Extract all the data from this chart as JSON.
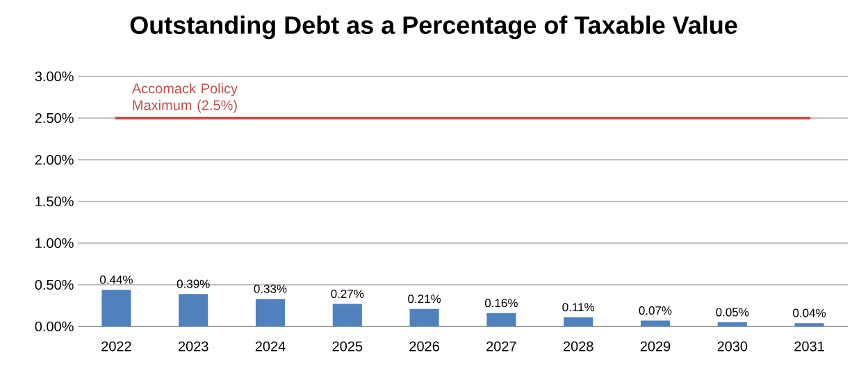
{
  "chart_data": {
    "type": "bar",
    "title": "Outstanding Debt as a Percentage of Taxable Value",
    "categories": [
      "2022",
      "2023",
      "2024",
      "2025",
      "2026",
      "2027",
      "2028",
      "2029",
      "2030",
      "2031"
    ],
    "series": [
      {
        "color": "#4f81bd",
        "values": [
          0.44,
          0.39,
          0.33,
          0.27,
          0.21,
          0.16,
          0.11,
          0.07,
          0.05,
          0.04
        ],
        "value_labels": [
          "0.44%",
          "0.39%",
          "0.33%",
          "0.27%",
          "0.21%",
          "0.16%",
          "0.11%",
          "0.07%",
          "0.05%",
          "0.04%"
        ]
      },
      {
        "type": "line",
        "name": "Accomack Policy Maximum (2.5%)",
        "color": "#c0504d",
        "values": [
          2.5,
          2.5,
          2.5,
          2.5,
          2.5,
          2.5,
          2.5,
          2.5,
          2.5,
          2.5
        ]
      }
    ],
    "ylim": [
      0,
      3
    ],
    "yticks": [
      {
        "value": 0,
        "label": "0.00%"
      },
      {
        "value": 0.5,
        "label": "0.50%"
      },
      {
        "value": 1,
        "label": "1.00%"
      },
      {
        "value": 1.5,
        "label": "1.50%"
      },
      {
        "value": 2,
        "label": "2.00%"
      },
      {
        "value": 2.5,
        "label": "2.50%"
      },
      {
        "value": 3,
        "label": "3.00%"
      }
    ],
    "grid": "y"
  }
}
